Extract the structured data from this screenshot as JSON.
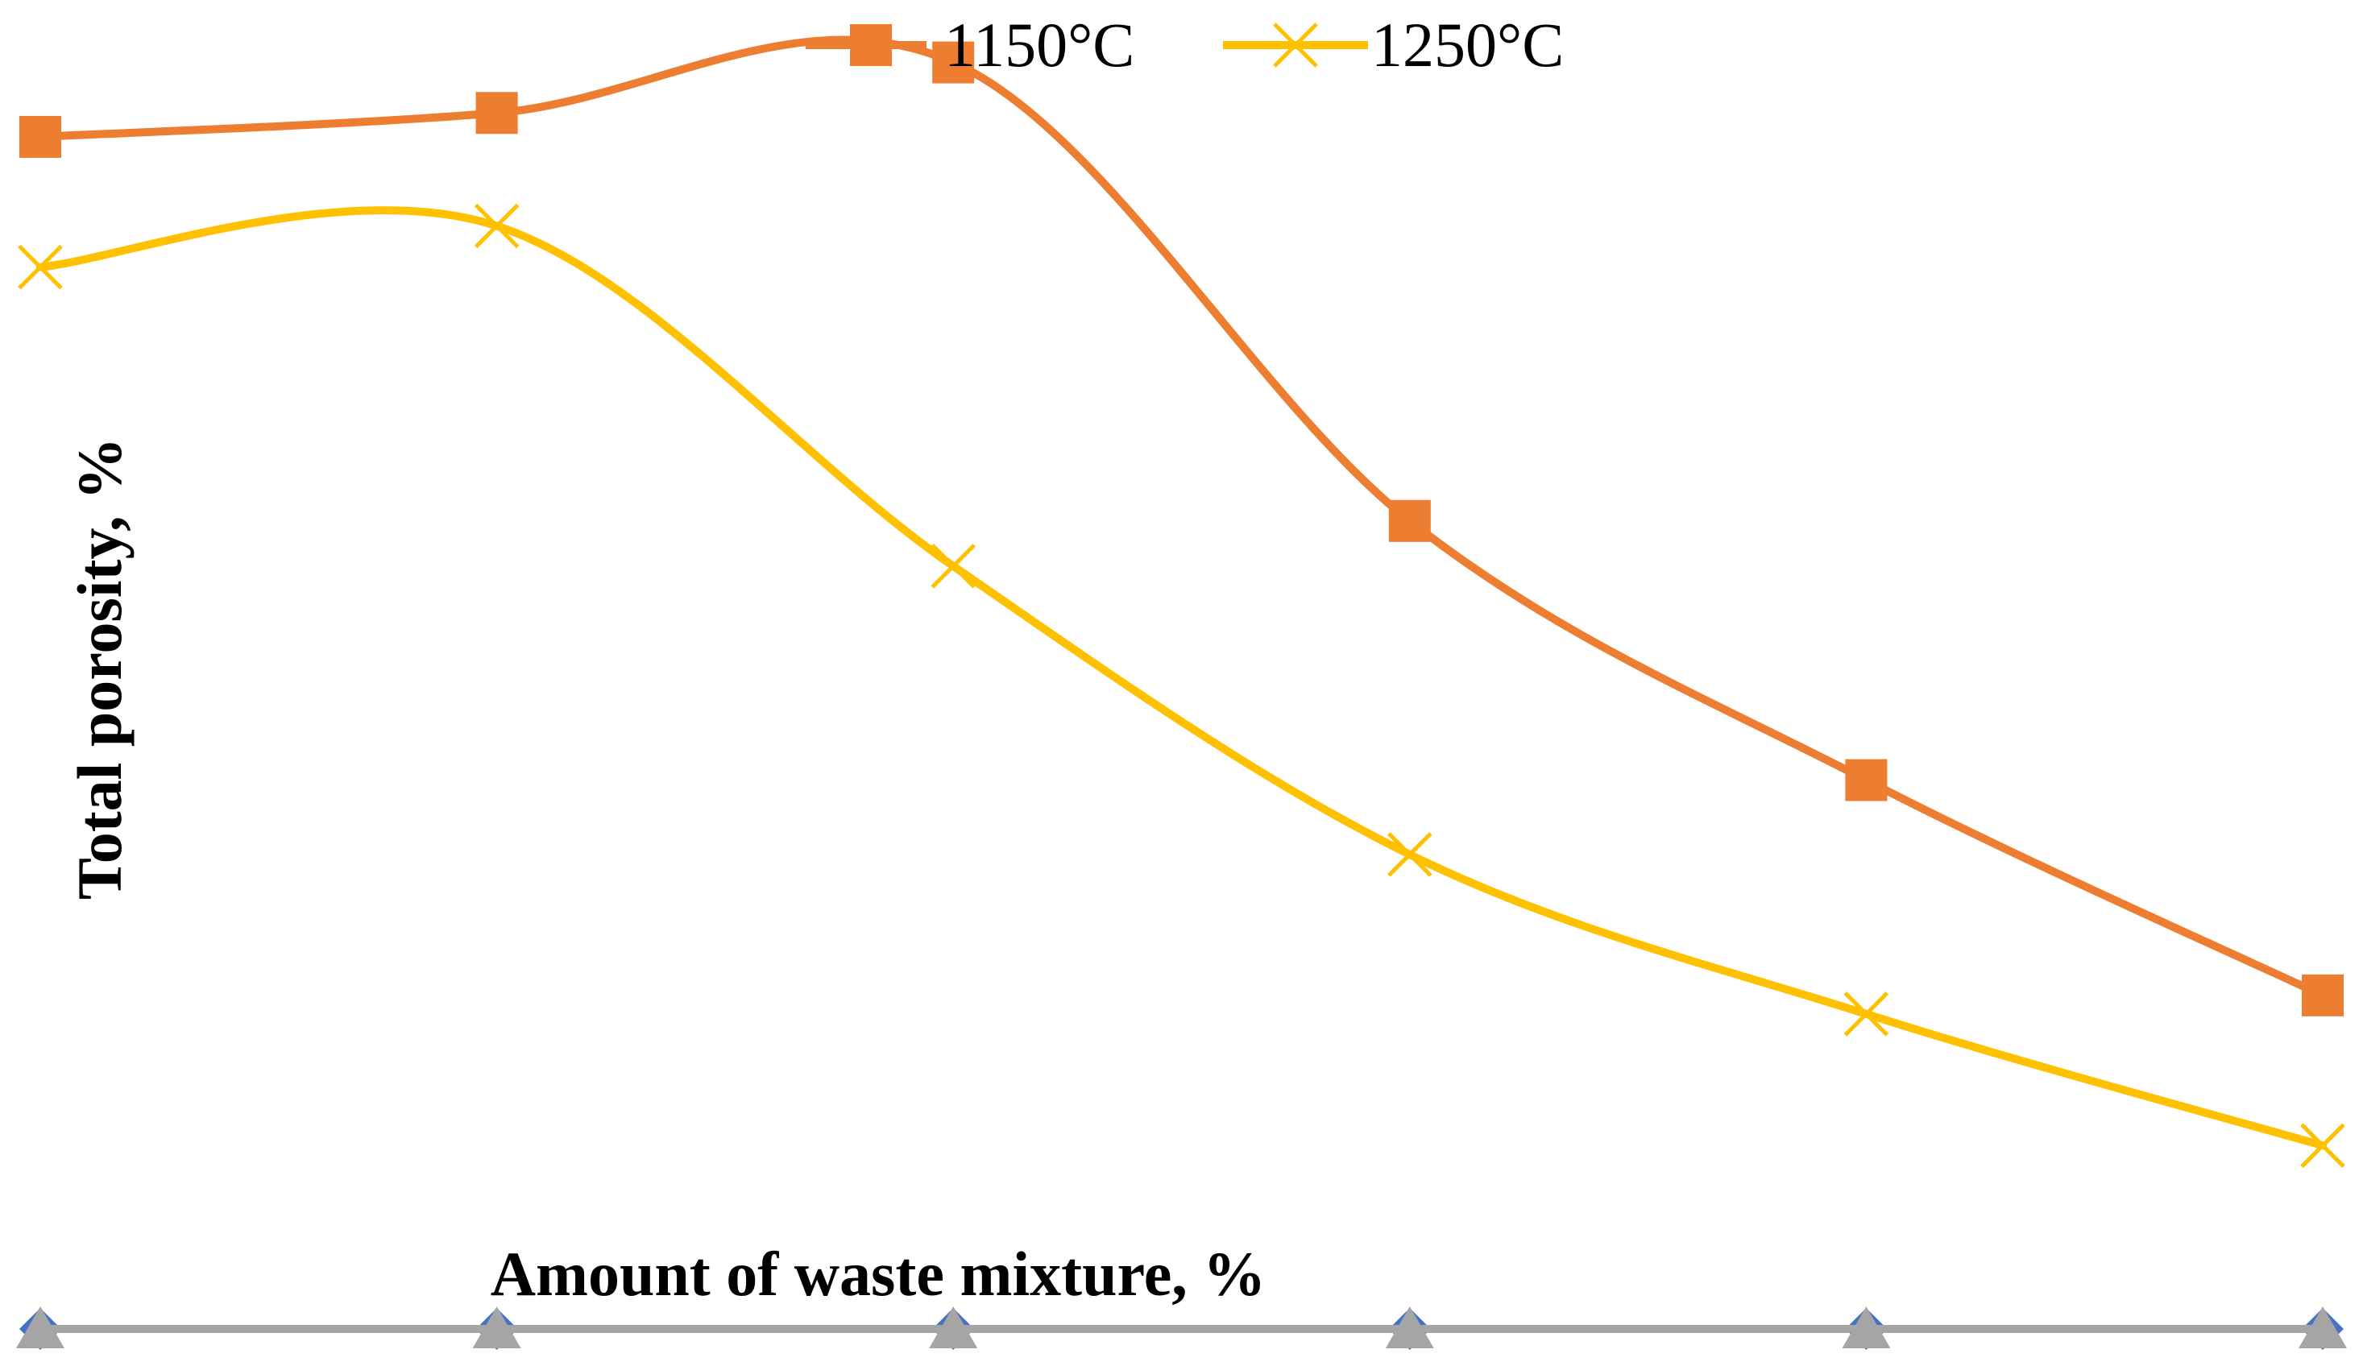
{
  "chart_data": {
    "type": "line",
    "xlabel": "Amount of waste mixture, %",
    "ylabel": "Total porosity, %",
    "x_count": 6,
    "ylim": [
      0,
      100
    ],
    "legend_position": "top-center",
    "series": [
      {
        "name": "1150°C",
        "color": "#ED7D31",
        "marker": "square",
        "values": [
          89.7,
          91.5,
          95.3,
          60.8,
          41.3,
          25.1
        ]
      },
      {
        "name": "1250°C",
        "color": "#FFC000",
        "marker": "x",
        "values": [
          79.9,
          83.0,
          57.4,
          35.7,
          23.7,
          13.8
        ]
      },
      {
        "name": "",
        "color": "#4472C4",
        "marker": "diamond",
        "values": [
          0,
          0,
          0,
          0,
          0,
          0
        ]
      },
      {
        "name": "",
        "color": "#A5A5A5",
        "marker": "triangle",
        "values": [
          0,
          0,
          0,
          0,
          0,
          0
        ]
      }
    ]
  }
}
